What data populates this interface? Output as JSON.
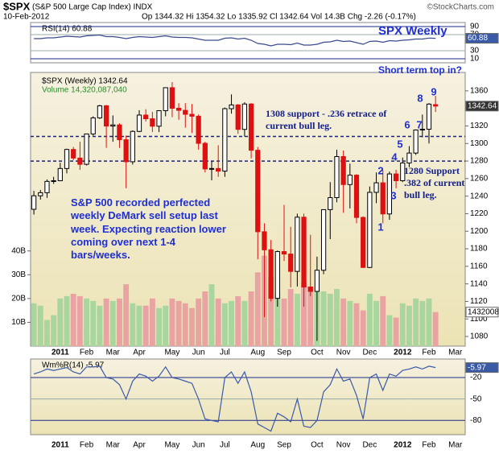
{
  "chart_data": [
    {
      "type": "candlestick",
      "header": {
        "symbol": "$SPX",
        "name": "(S&P 500 Large Cap Index) INDX",
        "credit": "©StockCharts.com",
        "date": "10-Feb-2012",
        "quote": "Op 1344.32 Hi 1354.32 Lo 1335.92 Cl 1342.64 Vol 14.3B Chg -2.26 (-0.17%)"
      },
      "legend": "$SPX (Weekly) 1342.64",
      "last_label": "1342.64",
      "categories": [
        null,
        null,
        null,
        null,
        "2011",
        null,
        null,
        null,
        "Feb",
        null,
        null,
        null,
        "Mar",
        null,
        null,
        null,
        "Apr",
        null,
        null,
        null,
        null,
        "May",
        null,
        null,
        null,
        "Jun",
        null,
        null,
        null,
        "Jul",
        null,
        null,
        null,
        null,
        "Aug",
        null,
        null,
        null,
        "Sep",
        null,
        null,
        null,
        null,
        "Oct",
        null,
        null,
        null,
        "Nov",
        null,
        null,
        null,
        "Dec",
        null,
        null,
        null,
        null,
        "2012",
        null,
        null,
        null,
        "Feb",
        null,
        null,
        null,
        "Mar",
        null
      ],
      "open": [
        1225.0,
        1240.4,
        1243.9,
        1256.8,
        1257.6,
        1271.5,
        1293.2,
        1283.4,
        1276.3,
        1310.9,
        1329.2,
        1343.0,
        1319.9,
        1321.2,
        1304.3,
        1279.2,
        1313.8,
        1332.4,
        1328.2,
        1319.7,
        1337.4,
        1363.6,
        1340.2,
        1337.8,
        1333.3,
        1331.1,
        1300.2,
        1271.0,
        1271.5,
        1268.5,
        1339.7,
        1344.0,
        1316.1,
        1345.0,
        1292.3,
        1199.4,
        1178.8,
        1123.5,
        1176.8,
        1174.0,
        1154.2,
        1216.0,
        1136.4,
        1131.4,
        1155.5,
        1224.6,
        1238.3,
        1285.1,
        1253.2,
        1263.9,
        1215.7,
        1158.7,
        1244.3,
        1255.2,
        1219.7,
        1265.3,
        1257.6,
        1277.8,
        1289.1,
        1315.4,
        1316.3,
        1344.32,
        null,
        null,
        null,
        null
      ],
      "high": [
        1246,
        1247,
        1259,
        1262,
        1278,
        1294,
        1296,
        1302,
        1311,
        1331,
        1344,
        1344,
        1332,
        1323,
        1309,
        1315,
        1338,
        1339,
        1336,
        1338,
        1364,
        1370,
        1346,
        1346,
        1345,
        1333,
        1302,
        1280,
        1298,
        1341,
        1356,
        1345,
        1347,
        1346,
        1296,
        1209,
        1190,
        1178,
        1230,
        1205,
        1220,
        1220,
        1196,
        1171,
        1225,
        1256,
        1293,
        1292,
        1277,
        1265,
        1217,
        1251,
        1267,
        1270,
        1268,
        1270,
        1284,
        1297,
        1316,
        1333,
        1346,
        1354.32,
        null,
        null,
        null,
        null
      ],
      "low": [
        1219,
        1236,
        1238,
        1254,
        1257,
        1266,
        1281,
        1270,
        1275,
        1309,
        1328,
        1295,
        1302,
        1295,
        1249,
        1276,
        1313,
        1325,
        1313,
        1313,
        1331,
        1330,
        1327,
        1318,
        1312,
        1293,
        1267,
        1258,
        1262,
        1262,
        1334,
        1311,
        1308,
        1283,
        1168,
        1102,
        1120,
        1114,
        1166,
        1136,
        1137,
        1114,
        1126,
        1075,
        1151,
        1191,
        1233,
        1221,
        1226,
        1209,
        1158,
        1158,
        1232,
        1209,
        1213,
        1249,
        1256,
        1273,
        1287,
        1307,
        1300,
        1335.92,
        null,
        null,
        null,
        null
      ],
      "close": [
        1240.4,
        1243.9,
        1256.8,
        1257.6,
        1271.5,
        1293.2,
        1283.4,
        1276.3,
        1310.9,
        1329.2,
        1343.0,
        1319.9,
        1321.2,
        1304.3,
        1279.2,
        1313.8,
        1332.4,
        1328.2,
        1319.7,
        1337.4,
        1363.6,
        1340.2,
        1337.8,
        1333.3,
        1331.1,
        1300.2,
        1271.0,
        1271.5,
        1268.5,
        1339.7,
        1344.0,
        1316.1,
        1345.0,
        1292.3,
        1199.4,
        1178.8,
        1123.5,
        1176.8,
        1174.0,
        1154.2,
        1216.0,
        1136.4,
        1131.4,
        1155.5,
        1224.6,
        1238.3,
        1285.1,
        1253.2,
        1263.9,
        1215.7,
        1158.7,
        1244.3,
        1255.2,
        1219.7,
        1265.3,
        1257.6,
        1277.8,
        1289.1,
        1315.4,
        1316.3,
        1344.9,
        1342.64,
        null,
        null,
        null,
        null
      ],
      "ylim": [
        1069,
        1381
      ],
      "yticks": [
        1080,
        1100,
        1120,
        1140,
        1160,
        1180,
        1200,
        1220,
        1240,
        1260,
        1280,
        1300,
        1320,
        1340,
        1360
      ],
      "up_color": "#ffffff",
      "down_color": "#dd1111",
      "support_levels": [
        1308,
        1280
      ],
      "annotations": [
        "SPX Weekly",
        "Short term top in?",
        "1308 support - .236 retrace of current bull leg.",
        "1280 Support .382 of current bull leg.",
        "S&P 500 recorded perfected weekly DeMark sell setup last week. Expecting reaction lower coming over next 1-4 bars/weeks."
      ],
      "setup_counts": [
        "1",
        "2",
        "3",
        "4",
        "5",
        "6",
        "7",
        "8",
        "9"
      ],
      "volume": {
        "name": "Volume 14,320,087,040",
        "last_label": "1432008",
        "values": [
          18,
          17,
          11,
          13,
          20,
          21,
          22,
          21,
          20,
          19,
          17,
          20,
          19,
          20,
          26,
          18,
          17,
          17,
          20,
          16,
          17,
          20,
          19,
          18,
          16,
          20,
          23,
          26,
          20,
          18,
          19,
          21,
          19,
          23,
          31,
          38,
          29,
          22,
          20,
          24,
          22,
          27,
          25,
          24,
          23,
          22,
          24,
          20,
          19,
          18,
          15,
          22,
          19,
          21,
          13,
          12,
          18,
          17,
          20,
          19,
          20,
          14.3,
          null,
          null,
          null,
          null
        ],
        "ylim": [
          0,
          115
        ],
        "yticks": [
          {
            "value": 10,
            "label": "10B"
          },
          {
            "value": 20,
            "label": "20B"
          },
          {
            "value": 30,
            "label": "30B"
          },
          {
            "value": 40,
            "label": "40B"
          }
        ],
        "up_color": "#a9d69e",
        "down_color": "#e9a3a3"
      }
    },
    {
      "type": "line",
      "title": "RSI(14) 60.88",
      "last_label": "60.88",
      "color": "#3a4a8c",
      "values": [
        60,
        60,
        62,
        62,
        64,
        66,
        65,
        64,
        67,
        68,
        69,
        65,
        65,
        63,
        60,
        63,
        65,
        64,
        63,
        65,
        67,
        64,
        63,
        63,
        62,
        59,
        56,
        56,
        56,
        61,
        62,
        59,
        61,
        56,
        48,
        46,
        42,
        46,
        46,
        45,
        49,
        44,
        44,
        46,
        51,
        52,
        56,
        53,
        54,
        50,
        46,
        53,
        54,
        51,
        55,
        54,
        56,
        57,
        59,
        59,
        61.5,
        60.88,
        null,
        null,
        null,
        null
      ],
      "ylim": [
        0,
        100
      ],
      "yticks": [
        10,
        30,
        70,
        90
      ]
    },
    {
      "type": "line",
      "title": "Wm%R(14) -5.97",
      "last_label": "-5.97",
      "color": "#3a5aa8",
      "values": [
        -15,
        -12,
        -8,
        -10,
        -8,
        -6,
        -12,
        -15,
        -5,
        -5,
        -4,
        -20,
        -22,
        -30,
        -50,
        -25,
        -15,
        -18,
        -25,
        -18,
        -5,
        -20,
        -22,
        -25,
        -28,
        -50,
        -78,
        -80,
        -82,
        -20,
        -12,
        -28,
        -12,
        -40,
        -85,
        -90,
        -95,
        -70,
        -75,
        -82,
        -50,
        -88,
        -90,
        -80,
        -40,
        -30,
        -8,
        -25,
        -22,
        -45,
        -78,
        -20,
        -15,
        -38,
        -15,
        -18,
        -10,
        -8,
        -5,
        -8,
        -4,
        -5.97,
        null,
        null,
        null,
        null
      ],
      "ylim": [
        -100,
        6
      ],
      "yticks": [
        -20,
        -50,
        -80
      ]
    }
  ]
}
